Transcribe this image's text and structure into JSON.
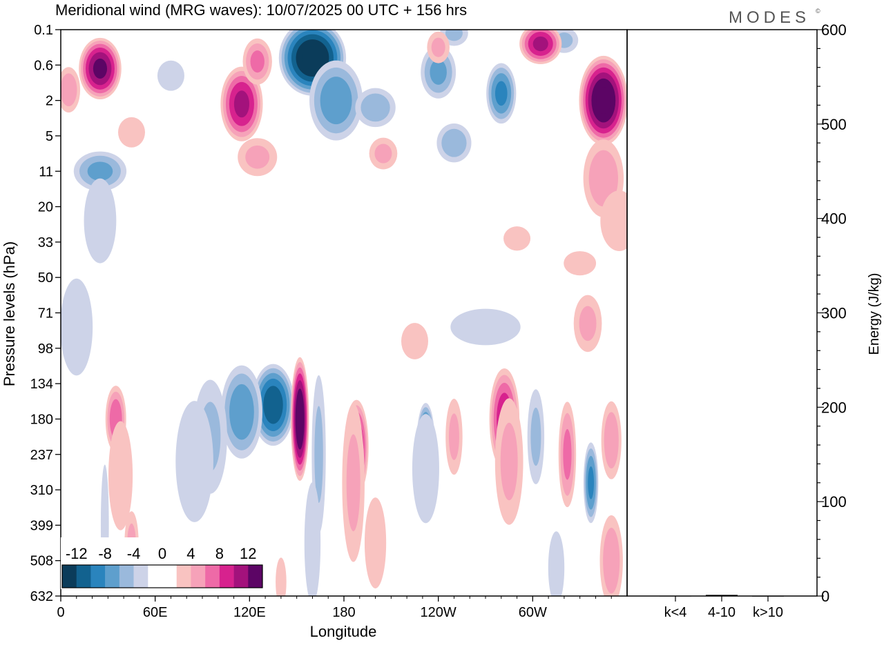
{
  "header": {
    "title": "Meridional wind (MRG waves):  10/07/2025  00 UTC  + 156 hrs",
    "brand": "MODES",
    "brand_mark": "©"
  },
  "chart_data": [
    {
      "type": "heatmap",
      "title": "Meridional wind (MRG waves):  10/07/2025  00 UTC  + 156 hrs",
      "xlabel": "Longitude",
      "ylabel": "Pressure levels (hPa)",
      "x_ticks": [
        {
          "lon": 0,
          "label": "0"
        },
        {
          "lon": 60,
          "label": "60E"
        },
        {
          "lon": 120,
          "label": "120E"
        },
        {
          "lon": 180,
          "label": "180"
        },
        {
          "lon": 240,
          "label": "120W"
        },
        {
          "lon": 300,
          "label": "60W"
        }
      ],
      "xlim": [
        0,
        360
      ],
      "y_levels": [
        "0.1",
        "0.6",
        "2",
        "5",
        "11",
        "20",
        "33",
        "50",
        "71",
        "98",
        "134",
        "180",
        "237",
        "310",
        "399",
        "508",
        "632"
      ],
      "y_scale": "categorical (model levels, top to bottom)",
      "colorbar": {
        "labels": [
          "-12",
          "-8",
          "-4",
          "0",
          "4",
          "8",
          "12"
        ],
        "colors": [
          "#0b3c5a",
          "#12628f",
          "#2a84bd",
          "#5e9fcd",
          "#9ab9dc",
          "#cdd3e8",
          "#ffffff",
          "#ffffff",
          "#f9c3c1",
          "#f6a2b9",
          "#ee6aa7",
          "#d7228e",
          "#a3127c",
          "#5c0565"
        ],
        "placement": "bottom-left"
      },
      "blobs": [
        {
          "lon": 160,
          "lev": 0.8,
          "v": -14,
          "w": 22,
          "h": 1.1
        },
        {
          "lon": 175,
          "lev": 2.0,
          "v": -7,
          "w": 18,
          "h": 1.2
        },
        {
          "lon": 200,
          "lev": 2.2,
          "v": -5,
          "w": 14,
          "h": 0.6
        },
        {
          "lon": 240,
          "lev": 1.2,
          "v": -6,
          "w": 12,
          "h": 0.8
        },
        {
          "lon": 280,
          "lev": 1.8,
          "v": -8,
          "w": 10,
          "h": 0.9
        },
        {
          "lon": 250,
          "lev": 3.2,
          "v": -5,
          "w": 12,
          "h": 0.6
        },
        {
          "lon": 320,
          "lev": 0.3,
          "v": -4,
          "w": 10,
          "h": 0.4
        },
        {
          "lon": 250,
          "lev": 0.1,
          "v": -4,
          "w": 10,
          "h": 0.4
        },
        {
          "lon": 25,
          "lev": 4.0,
          "v": -6,
          "w": 18,
          "h": 0.6
        },
        {
          "lon": 25,
          "lev": 5.4,
          "v": -3,
          "w": 12,
          "h": 1.4
        },
        {
          "lon": 70,
          "lev": 1.3,
          "v": -3,
          "w": 10,
          "h": 0.5
        },
        {
          "lon": 25,
          "lev": 1.1,
          "v": 12,
          "w": 14,
          "h": 0.9
        },
        {
          "lon": 5,
          "lev": 1.7,
          "v": 5,
          "w": 8,
          "h": 0.7
        },
        {
          "lon": 115,
          "lev": 2.1,
          "v": 10,
          "w": 14,
          "h": 1.1
        },
        {
          "lon": 125,
          "lev": 0.9,
          "v": 6,
          "w": 10,
          "h": 0.7
        },
        {
          "lon": 305,
          "lev": 0.4,
          "v": 10,
          "w": 14,
          "h": 0.6
        },
        {
          "lon": 345,
          "lev": 2.0,
          "v": 14,
          "w": 16,
          "h": 1.3
        },
        {
          "lon": 345,
          "lev": 4.2,
          "v": 5,
          "w": 14,
          "h": 1.2
        },
        {
          "lon": 355,
          "lev": 5.4,
          "v": 3,
          "w": 14,
          "h": 1.0
        },
        {
          "lon": 205,
          "lev": 3.5,
          "v": 4,
          "w": 10,
          "h": 0.5
        },
        {
          "lon": 125,
          "lev": 3.6,
          "v": 4,
          "w": 14,
          "h": 0.6
        },
        {
          "lon": 45,
          "lev": 2.9,
          "v": 3,
          "w": 10,
          "h": 0.5
        },
        {
          "lon": 240,
          "lev": 0.5,
          "v": 4,
          "w": 8,
          "h": 0.5
        },
        {
          "lon": 270,
          "lev": 8.4,
          "v": -3,
          "w": 26,
          "h": 0.6
        },
        {
          "lon": 330,
          "lev": 6.6,
          "v": 3,
          "w": 12,
          "h": 0.4
        },
        {
          "lon": 335,
          "lev": 8.3,
          "v": 4,
          "w": 10,
          "h": 0.9
        },
        {
          "lon": 290,
          "lev": 5.9,
          "v": 3,
          "w": 10,
          "h": 0.4
        },
        {
          "lon": 225,
          "lev": 8.8,
          "v": 3,
          "w": 10,
          "h": 0.6
        },
        {
          "lon": 10,
          "lev": 8.4,
          "v": -3,
          "w": 12,
          "h": 1.6
        },
        {
          "lon": 135,
          "lev": 10.6,
          "v": -11,
          "w": 14,
          "h": 1.2
        },
        {
          "lon": 115,
          "lev": 10.8,
          "v": -7,
          "w": 14,
          "h": 1.4
        },
        {
          "lon": 95,
          "lev": 11.5,
          "v": -4,
          "w": 12,
          "h": 1.8
        },
        {
          "lon": 85,
          "lev": 12.2,
          "v": -3,
          "w": 14,
          "h": 2.0
        },
        {
          "lon": 152,
          "lev": 11.0,
          "v": 14,
          "w": 6,
          "h": 1.8
        },
        {
          "lon": 164,
          "lev": 12.0,
          "v": -4,
          "w": 5,
          "h": 2.5
        },
        {
          "lon": 188,
          "lev": 11.8,
          "v": 10,
          "w": 8,
          "h": 1.4
        },
        {
          "lon": 186,
          "lev": 12.8,
          "v": 4,
          "w": 8,
          "h": 2.5
        },
        {
          "lon": 232,
          "lev": 11.7,
          "v": -11,
          "w": 6,
          "h": 1.2
        },
        {
          "lon": 232,
          "lev": 12.4,
          "v": -3,
          "w": 10,
          "h": 1.8
        },
        {
          "lon": 250,
          "lev": 11.5,
          "v": 4,
          "w": 6,
          "h": 1.2
        },
        {
          "lon": 282,
          "lev": 11.0,
          "v": 9,
          "w": 10,
          "h": 1.5
        },
        {
          "lon": 285,
          "lev": 12.2,
          "v": 4,
          "w": 10,
          "h": 2.0
        },
        {
          "lon": 302,
          "lev": 11.5,
          "v": -4,
          "w": 6,
          "h": 1.5
        },
        {
          "lon": 322,
          "lev": 12.0,
          "v": 6,
          "w": 6,
          "h": 1.6
        },
        {
          "lon": 337,
          "lev": 12.8,
          "v": -8,
          "w": 5,
          "h": 1.2
        },
        {
          "lon": 350,
          "lev": 11.6,
          "v": 5,
          "w": 7,
          "h": 1.2
        },
        {
          "lon": 35,
          "lev": 11.0,
          "v": 7,
          "w": 7,
          "h": 1.0
        },
        {
          "lon": 38,
          "lev": 12.6,
          "v": 3,
          "w": 9,
          "h": 1.8
        },
        {
          "lon": 45,
          "lev": 14.5,
          "v": 4,
          "w": 5,
          "h": 1.0
        },
        {
          "lon": 28,
          "lev": 14.0,
          "v": -3,
          "w": 3,
          "h": 2.0
        },
        {
          "lon": 160,
          "lev": 14.5,
          "v": -3,
          "w": 6,
          "h": 2.0
        },
        {
          "lon": 200,
          "lev": 14.5,
          "v": 3,
          "w": 8,
          "h": 1.5
        },
        {
          "lon": 315,
          "lev": 15.2,
          "v": -3,
          "w": 6,
          "h": 1.2
        },
        {
          "lon": 350,
          "lev": 15.0,
          "v": 5,
          "w": 8,
          "h": 1.4
        },
        {
          "lon": 140,
          "lev": 15.6,
          "v": 3,
          "w": 4,
          "h": 0.8
        }
      ]
    },
    {
      "type": "bar",
      "categories": [
        "k<4",
        "4-10",
        "k>10"
      ],
      "values": [
        0.3,
        1.2,
        0.2
      ],
      "ylabel": "Energy (J/kg)",
      "ylim": [
        0,
        600
      ],
      "y_ticks": [
        0,
        100,
        200,
        300,
        400,
        500,
        600
      ]
    }
  ]
}
